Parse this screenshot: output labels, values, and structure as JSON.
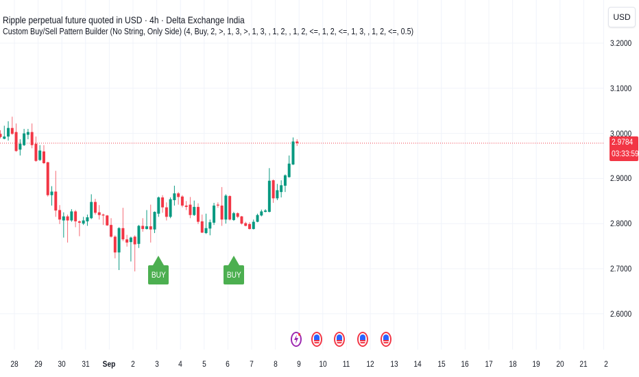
{
  "header": {
    "title": "Ripple perpetual future quoted in USD · 4h · Delta Exchange India",
    "indicator": "Custom Buy/Sell Pattern Builder (No String, Only Side) (4, Buy, 2, >, 1, 3, >, 1, 3, , 1, 2, , 1, 2, <=, 1, 2, <=, 1, 3, , 1, 2, <=, 0.5)"
  },
  "price_axis": {
    "currency_button": "USD",
    "labels": [
      "3.2000",
      "3.1000",
      "3.0000",
      "2.9000",
      "2.8000",
      "2.7000",
      "2.6000"
    ],
    "last_price": "2.9784",
    "countdown": "03:33:59"
  },
  "time_axis": {
    "labels": [
      "28",
      "29",
      "30",
      "31",
      "Sep",
      "2",
      "3",
      "4",
      "5",
      "6",
      "7",
      "8",
      "9",
      "10",
      "11",
      "12",
      "13",
      "14",
      "15",
      "16",
      "17",
      "18",
      "19",
      "20",
      "21",
      "2"
    ]
  },
  "colors": {
    "up": "#089981",
    "down": "#f23645",
    "buy": "#4caf50",
    "last_line": "#f23645",
    "grid": "#f0f3fa"
  },
  "chart_data": {
    "type": "candlestick",
    "timeframe": "4h",
    "ylim": [
      2.6,
      3.2
    ],
    "grid": true,
    "ohlc": [
      [
        2.999,
        3.007,
        2.989,
        2.992
      ],
      [
        2.988,
        3.017,
        2.987,
        2.993
      ],
      [
        2.993,
        3.027,
        2.984,
        3.012
      ],
      [
        3.012,
        3.037,
        2.997,
        2.999
      ],
      [
        3.003,
        3.022,
        2.959,
        2.961
      ],
      [
        2.964,
        2.987,
        2.951,
        2.977
      ],
      [
        2.974,
        3.01,
        2.972,
        3.0
      ],
      [
        2.997,
        3.01,
        2.987,
        3.003
      ],
      [
        3.003,
        3.022,
        2.967,
        2.974
      ],
      [
        2.977,
        2.993,
        2.937,
        2.939
      ],
      [
        2.941,
        2.974,
        2.939,
        2.962
      ],
      [
        2.96,
        2.974,
        2.932,
        2.934
      ],
      [
        2.936,
        2.937,
        2.86,
        2.863
      ],
      [
        2.863,
        2.883,
        2.84,
        2.871
      ],
      [
        2.871,
        2.917,
        2.815,
        2.829
      ],
      [
        2.83,
        2.841,
        2.799,
        2.809
      ],
      [
        2.807,
        2.825,
        2.769,
        2.816
      ],
      [
        2.816,
        2.82,
        2.758,
        2.807
      ],
      [
        2.807,
        2.832,
        2.804,
        2.827
      ],
      [
        2.827,
        2.83,
        2.792,
        2.805
      ],
      [
        2.805,
        2.807,
        2.772,
        2.802
      ],
      [
        2.8,
        2.815,
        2.797,
        2.807
      ],
      [
        2.805,
        2.82,
        2.795,
        2.814
      ],
      [
        2.812,
        2.865,
        2.81,
        2.848
      ],
      [
        2.848,
        2.855,
        2.82,
        2.824
      ],
      [
        2.825,
        2.841,
        2.809,
        2.819
      ],
      [
        2.82,
        2.822,
        2.797,
        2.818
      ],
      [
        2.818,
        2.819,
        2.795,
        2.796
      ],
      [
        2.797,
        2.812,
        2.769,
        2.771
      ],
      [
        2.771,
        2.774,
        2.723,
        2.736
      ],
      [
        2.736,
        2.792,
        2.697,
        2.79
      ],
      [
        2.79,
        2.835,
        2.761,
        2.765
      ],
      [
        2.765,
        2.775,
        2.749,
        2.758
      ],
      [
        2.759,
        2.771,
        2.716,
        2.769
      ],
      [
        2.771,
        2.774,
        2.694,
        2.754
      ],
      [
        2.755,
        2.797,
        2.746,
        2.795
      ],
      [
        2.795,
        2.812,
        2.782,
        2.788
      ],
      [
        2.788,
        2.83,
        2.787,
        2.794
      ],
      [
        2.794,
        2.842,
        2.758,
        2.787
      ],
      [
        2.787,
        2.827,
        2.779,
        2.826
      ],
      [
        2.822,
        2.86,
        2.815,
        2.858
      ],
      [
        2.858,
        2.863,
        2.824,
        2.836
      ],
      [
        2.836,
        2.847,
        2.807,
        2.815
      ],
      [
        2.815,
        2.858,
        2.812,
        2.854
      ],
      [
        2.852,
        2.884,
        2.84,
        2.867
      ],
      [
        2.867,
        2.87,
        2.842,
        2.859
      ],
      [
        2.86,
        2.863,
        2.836,
        2.84
      ],
      [
        2.84,
        2.85,
        2.83,
        2.837
      ],
      [
        2.842,
        2.859,
        2.812,
        2.819
      ],
      [
        2.819,
        2.851,
        2.817,
        2.837
      ],
      [
        2.837,
        2.845,
        2.799,
        2.804
      ],
      [
        2.805,
        2.82,
        2.779,
        2.78
      ],
      [
        2.779,
        2.822,
        2.777,
        2.79
      ],
      [
        2.789,
        2.809,
        2.774,
        2.803
      ],
      [
        2.802,
        2.846,
        2.797,
        2.84
      ],
      [
        2.842,
        2.847,
        2.835,
        2.84
      ],
      [
        2.84,
        2.881,
        2.795,
        2.809
      ],
      [
        2.809,
        2.865,
        2.8,
        2.862
      ],
      [
        2.861,
        2.863,
        2.807,
        2.809
      ],
      [
        2.808,
        2.826,
        2.806,
        2.823
      ],
      [
        2.823,
        2.825,
        2.812,
        2.815
      ],
      [
        2.816,
        2.817,
        2.798,
        2.8
      ],
      [
        2.801,
        2.804,
        2.794,
        2.795
      ],
      [
        2.799,
        2.803,
        2.787,
        2.788
      ],
      [
        2.788,
        2.809,
        2.787,
        2.804
      ],
      [
        2.804,
        2.822,
        2.803,
        2.819
      ],
      [
        2.818,
        2.831,
        2.816,
        2.827
      ],
      [
        2.826,
        2.832,
        2.825,
        2.829
      ],
      [
        2.826,
        2.923,
        2.825,
        2.895
      ],
      [
        2.896,
        2.898,
        2.846,
        2.856
      ],
      [
        2.856,
        2.888,
        2.852,
        2.874
      ],
      [
        2.87,
        2.896,
        2.858,
        2.885
      ],
      [
        2.884,
        2.909,
        2.87,
        2.907
      ],
      [
        2.903,
        2.951,
        2.902,
        2.933
      ],
      [
        2.931,
        2.991,
        2.93,
        2.982
      ],
      [
        2.982,
        2.987,
        2.972,
        2.9784
      ]
    ],
    "signals": [
      {
        "candle": 40,
        "label": "BUY"
      },
      {
        "candle": 59,
        "label": "BUY"
      }
    ],
    "events": [
      {
        "type": "lightning-earnings-icon"
      },
      {
        "type": "us-flag-icon"
      },
      {
        "type": "us-flag-icon"
      },
      {
        "type": "us-flag-icon"
      },
      {
        "type": "us-flag-icon"
      }
    ]
  }
}
